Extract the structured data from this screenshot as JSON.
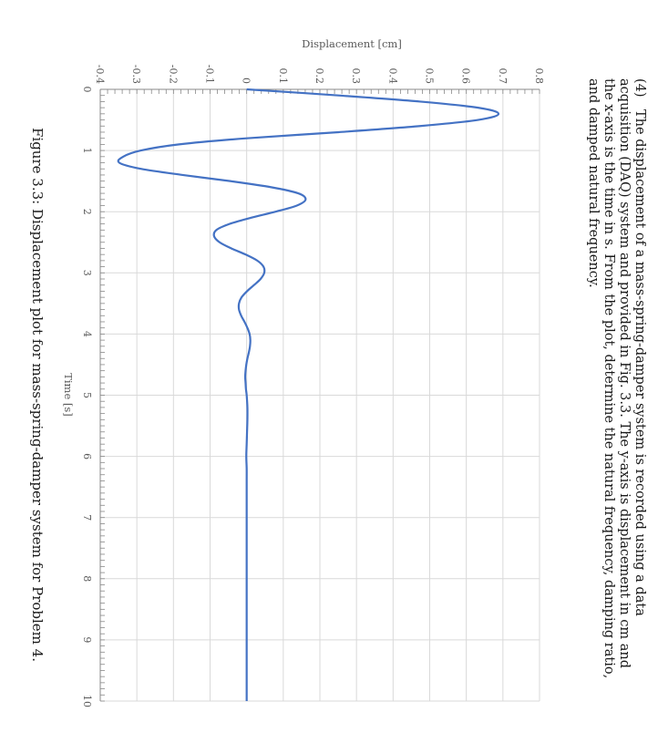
{
  "problem": {
    "number": "(4)",
    "text": "The displacement of a mass-spring-damper system is recorded using a data acquisition (DAQ) system and provided in Fig. 3.3. The y-axis is displacement in cm and the x-axis is the time in s. From the plot, determine the natural frequency, damping ratio, and damped natural frequency."
  },
  "figure": {
    "caption": "Figure 3.3: Displacement plot for mass-spring-damper system for Problem 4."
  },
  "colors": {
    "series": "#4472C4",
    "grid": "#d9d9d9",
    "axis": "#888888"
  },
  "chart_data": {
    "type": "line",
    "title": "",
    "xlabel": "Time [s]",
    "ylabel": "Displacement  [cm]",
    "xlim": [
      0,
      10
    ],
    "ylim": [
      -0.4,
      0.8
    ],
    "x_ticks": [
      "0",
      "1",
      "2",
      "3",
      "4",
      "5",
      "6",
      "7",
      "8",
      "9",
      "10"
    ],
    "y_ticks": [
      "-0.4",
      "-0.3",
      "-0.2",
      "-0.1",
      "0",
      "0.1",
      "0.2",
      "0.3",
      "0.4",
      "0.5",
      "0.6",
      "0.7",
      "0.8"
    ],
    "series": [
      {
        "name": "Displacement",
        "x": [
          0,
          0.1,
          0.2,
          0.3,
          0.4,
          0.5,
          0.6,
          0.7,
          0.8,
          0.9,
          1.0,
          1.1,
          1.2,
          1.3,
          1.4,
          1.5,
          1.6,
          1.7,
          1.8,
          1.9,
          2.0,
          2.1,
          2.2,
          2.3,
          2.4,
          2.5,
          2.6,
          2.7,
          2.8,
          2.9,
          3.0,
          3.1,
          3.2,
          3.3,
          3.4,
          3.5,
          3.6,
          3.7,
          3.8,
          3.9,
          4.0,
          4.1,
          4.2,
          4.3,
          4.4,
          4.5,
          4.6,
          4.7,
          4.8,
          4.9,
          5.0,
          5.2,
          5.4,
          5.6,
          5.8,
          6.0,
          6.2,
          6.4,
          6.6,
          6.8,
          7.0,
          7.5,
          8.0,
          8.5,
          9.0,
          9.5,
          10.0
        ],
        "y": [
          0.0,
          0.251,
          0.474,
          0.632,
          0.688,
          0.632,
          0.474,
          0.251,
          0.0,
          -0.185,
          -0.289,
          -0.337,
          -0.348,
          -0.289,
          -0.175,
          -0.045,
          0.067,
          0.141,
          0.161,
          0.137,
          0.079,
          0.011,
          -0.047,
          -0.083,
          -0.089,
          -0.074,
          -0.042,
          -0.003,
          0.029,
          0.046,
          0.048,
          0.038,
          0.02,
          0.001,
          -0.014,
          -0.021,
          -0.021,
          -0.015,
          -0.006,
          0.002,
          0.008,
          0.01,
          0.009,
          0.006,
          0.002,
          -0.001,
          -0.003,
          -0.004,
          -0.003,
          -0.002,
          0.0,
          0.002,
          0.002,
          0.001,
          0.0,
          -0.001,
          0.0,
          0.0,
          0.0,
          0.0,
          0.0,
          0.0,
          0.0,
          0.0,
          0.0,
          0.0,
          0.0
        ]
      }
    ]
  }
}
